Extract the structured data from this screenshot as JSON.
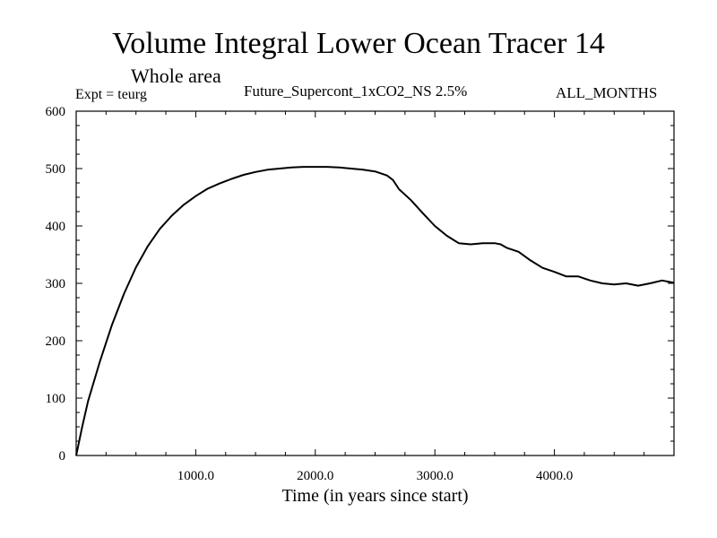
{
  "chart_data": {
    "type": "line",
    "title": "Volume Integral Lower Ocean Tracer 14",
    "subtitle": "Whole area",
    "annotations": {
      "left": "Expt = teurg",
      "center": "Future_Supercont_1xCO2_NS 2.5%",
      "right": "ALL_MONTHS"
    },
    "xlabel": "Time (in years since start)",
    "ylabel": "",
    "xlim": [
      0,
      5000
    ],
    "ylim": [
      0,
      600
    ],
    "xticks": [
      1000,
      2000,
      3000,
      4000
    ],
    "xtick_labels": [
      "1000.0",
      "2000.0",
      "3000.0",
      "4000.0"
    ],
    "yticks": [
      0,
      100,
      200,
      300,
      400,
      500,
      600
    ],
    "ytick_labels": [
      "0",
      "100",
      "200",
      "300",
      "400",
      "500",
      "600"
    ],
    "grid": false,
    "series": [
      {
        "color": "#000000",
        "x": [
          0,
          50,
          100,
          200,
          300,
          400,
          500,
          600,
          700,
          800,
          900,
          1000,
          1100,
          1200,
          1300,
          1400,
          1500,
          1600,
          1700,
          1800,
          1900,
          2000,
          2100,
          2200,
          2300,
          2400,
          2500,
          2600,
          2650,
          2700,
          2800,
          2900,
          3000,
          3100,
          3200,
          3300,
          3400,
          3500,
          3550,
          3600,
          3700,
          3800,
          3900,
          4000,
          4100,
          4200,
          4300,
          4400,
          4500,
          4600,
          4700,
          4800,
          4900,
          5000
        ],
        "y": [
          0,
          50,
          95,
          165,
          228,
          282,
          328,
          365,
          395,
          418,
          437,
          452,
          465,
          474,
          482,
          489,
          494,
          498,
          500,
          502,
          503,
          503,
          503,
          502,
          500,
          498,
          495,
          488,
          480,
          464,
          445,
          422,
          400,
          383,
          370,
          368,
          370,
          370,
          368,
          362,
          355,
          340,
          327,
          320,
          312,
          312,
          305,
          300,
          298,
          300,
          296,
          300,
          305,
          301
        ]
      }
    ]
  }
}
